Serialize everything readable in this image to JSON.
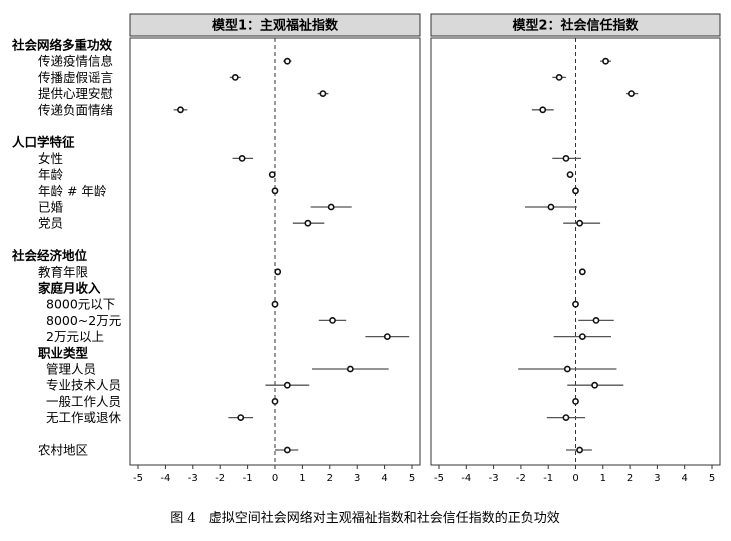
{
  "caption": "图 4　虚拟空间社会网络对主观福祉指数和社会信任指数的正负功效",
  "chart_data": {
    "type": "coefficient-plot",
    "x_ticks": [
      "-5",
      "-4",
      "-3",
      "-2",
      "-1",
      "0",
      "1",
      "2",
      "3",
      "4",
      "5"
    ],
    "xlim": [
      -5,
      5
    ],
    "reference_line": 0,
    "panels": [
      {
        "title": "模型1：主观福祉指数"
      },
      {
        "title": "模型2：社会信任指数"
      }
    ],
    "rows": [
      {
        "label": "社会网络多重功效",
        "header": true
      },
      {
        "label": "传递疫情信息",
        "m1": [
          0.45,
          0.3,
          0.6
        ],
        "m2": [
          1.1,
          0.9,
          1.3
        ]
      },
      {
        "label": "传播虚假谣言",
        "m1": [
          -1.45,
          -1.65,
          -1.25
        ],
        "m2": [
          -0.6,
          -0.85,
          -0.35
        ]
      },
      {
        "label": "提供心理安慰",
        "m1": [
          1.75,
          1.55,
          1.95
        ],
        "m2": [
          2.05,
          1.85,
          2.3
        ]
      },
      {
        "label": "传递负面情绪",
        "m1": [
          -3.45,
          -3.7,
          -3.2
        ],
        "m2": [
          -1.2,
          -1.6,
          -0.8
        ]
      },
      {
        "label": "",
        "spacer": true
      },
      {
        "label": "人口学特征",
        "header": true
      },
      {
        "label": "女性",
        "m1": [
          -1.2,
          -1.55,
          -0.8
        ],
        "m2": [
          -0.35,
          -0.85,
          0.2
        ]
      },
      {
        "label": "年龄",
        "m1": [
          -0.1,
          -0.2,
          0.0
        ],
        "m2": [
          -0.2,
          -0.3,
          -0.1
        ]
      },
      {
        "label": "年龄 # 年龄",
        "m1": [
          0.0,
          -0.05,
          0.05
        ],
        "m2": [
          0.0,
          -0.05,
          0.05
        ]
      },
      {
        "label": "已婚",
        "m1": [
          2.05,
          1.3,
          2.8
        ],
        "m2": [
          -0.9,
          -1.85,
          0.05
        ]
      },
      {
        "label": "党员",
        "m1": [
          1.2,
          0.65,
          1.8
        ],
        "m2": [
          0.15,
          -0.45,
          0.9
        ]
      },
      {
        "label": "",
        "spacer": true
      },
      {
        "label": "社会经济地位",
        "header": true
      },
      {
        "label": "教育年限",
        "m1": [
          0.1,
          0.05,
          0.15
        ],
        "m2": [
          0.25,
          0.2,
          0.3
        ]
      },
      {
        "label": "家庭月收入",
        "header": true
      },
      {
        "label": "8000元以下",
        "m1": [
          0.0,
          0.0,
          0.0
        ],
        "m2": [
          0.0,
          0.0,
          0.0
        ]
      },
      {
        "label": "8000~2万元",
        "m1": [
          2.1,
          1.6,
          2.6
        ],
        "m2": [
          0.75,
          0.1,
          1.4
        ]
      },
      {
        "label": "2万元以上",
        "m1": [
          4.1,
          3.3,
          4.9
        ],
        "m2": [
          0.25,
          -0.8,
          1.3
        ]
      },
      {
        "label": "职业类型",
        "header": true
      },
      {
        "label": "管理人员",
        "m1": [
          2.75,
          1.35,
          4.15
        ],
        "m2": [
          -0.3,
          -2.1,
          1.5
        ]
      },
      {
        "label": "专业技术人员",
        "m1": [
          0.45,
          -0.35,
          1.25
        ],
        "m2": [
          0.7,
          -0.3,
          1.75
        ]
      },
      {
        "label": "一般工作人员",
        "m1": [
          0.0,
          0.0,
          0.0
        ],
        "m2": [
          0.0,
          0.0,
          0.0
        ]
      },
      {
        "label": "无工作或退休",
        "m1": [
          -1.25,
          -1.7,
          -0.8
        ],
        "m2": [
          -0.35,
          -1.05,
          0.35
        ]
      },
      {
        "label": "",
        "spacer": true
      },
      {
        "label": "农村地区",
        "m1": [
          0.45,
          0.0,
          0.85
        ],
        "m2": [
          0.15,
          -0.35,
          0.6
        ]
      }
    ]
  }
}
